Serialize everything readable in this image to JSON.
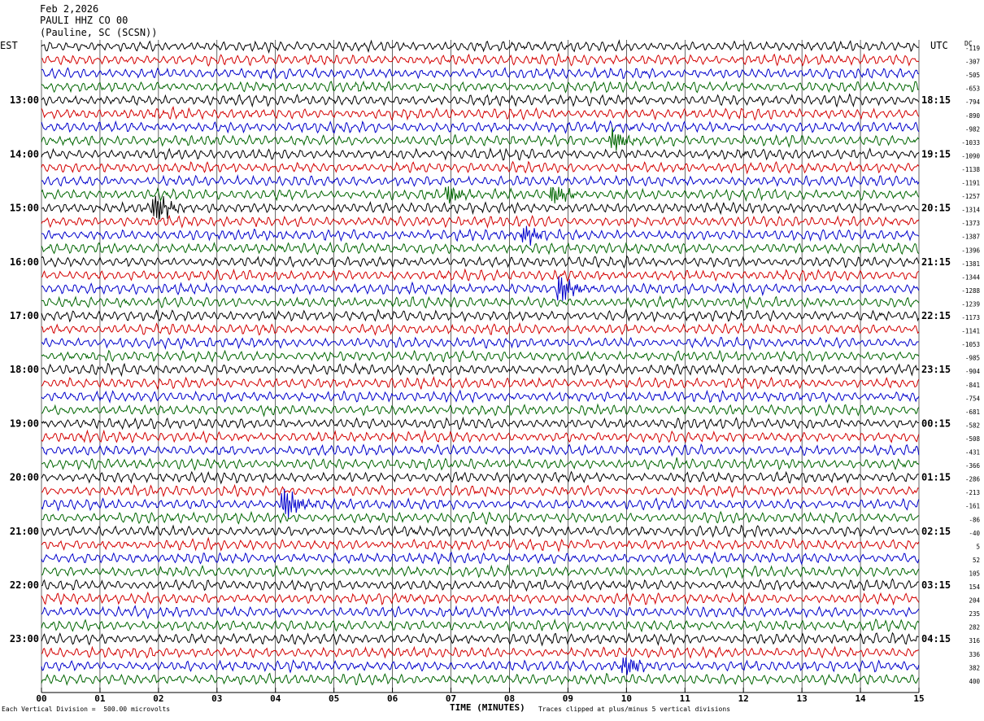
{
  "header": {
    "date": "Feb 2,2026",
    "station": "PAULI HHZ CO 00",
    "location": "(Pauline, SC (SCSN))"
  },
  "timezones": {
    "left": "EST",
    "right": "UTC"
  },
  "dc_label": "DC",
  "footer": {
    "scale_note": "Each Vertical Division =  500.00 microvolts",
    "xlabel": "TIME (MINUTES)",
    "clip_note": "Traces clipped at plus/minus 5 vertical divisions"
  },
  "colors": {
    "trace_cycle": [
      "#000000",
      "#d40000",
      "#0000cc",
      "#006600"
    ],
    "grid": "#000000"
  },
  "chart_data": {
    "type": "line",
    "title": "",
    "xlabel": "TIME (MINUTES)",
    "ylabel": "",
    "xlim": [
      0,
      15
    ],
    "x_ticks": [
      "00",
      "01",
      "02",
      "03",
      "04",
      "05",
      "06",
      "07",
      "08",
      "09",
      "10",
      "11",
      "12",
      "13",
      "14",
      "15"
    ],
    "rows_per_hour": 4,
    "left_hour_labels": [
      "13:00",
      "14:00",
      "15:00",
      "16:00",
      "17:00",
      "18:00",
      "19:00",
      "20:00",
      "21:00",
      "22:00",
      "23:00"
    ],
    "right_hour_labels": [
      "18:15",
      "19:15",
      "20:15",
      "21:15",
      "22:15",
      "23:15",
      "00:15",
      "01:15",
      "02:15",
      "03:15",
      "04:15"
    ],
    "dc_offsets": [
      -119,
      -307,
      -505,
      -653,
      -794,
      -890,
      -982,
      -1033,
      -1090,
      -1138,
      -1191,
      -1257,
      -1314,
      -1373,
      -1387,
      -1396,
      -1381,
      -1344,
      -1288,
      -1239,
      -1173,
      -1141,
      -1053,
      -985,
      -904,
      -841,
      -754,
      -681,
      -582,
      -508,
      -431,
      -366,
      -286,
      -213,
      -161,
      -86,
      -40,
      5,
      52,
      105,
      154,
      204,
      235,
      282,
      316,
      336,
      382,
      400
    ],
    "amplitude_divisions": 0.45,
    "events": [
      {
        "row": 7,
        "minute": 9.8,
        "amp": 1.0
      },
      {
        "row": 11,
        "minute": 7.0,
        "amp": 0.8
      },
      {
        "row": 11,
        "minute": 8.8,
        "amp": 0.9
      },
      {
        "row": 12,
        "minute": 2.0,
        "amp": 1.2
      },
      {
        "row": 14,
        "minute": 8.3,
        "amp": 0.8
      },
      {
        "row": 18,
        "minute": 8.9,
        "amp": 1.3
      },
      {
        "row": 34,
        "minute": 4.2,
        "amp": 1.4
      },
      {
        "row": 46,
        "minute": 10.0,
        "amp": 0.9
      }
    ]
  }
}
